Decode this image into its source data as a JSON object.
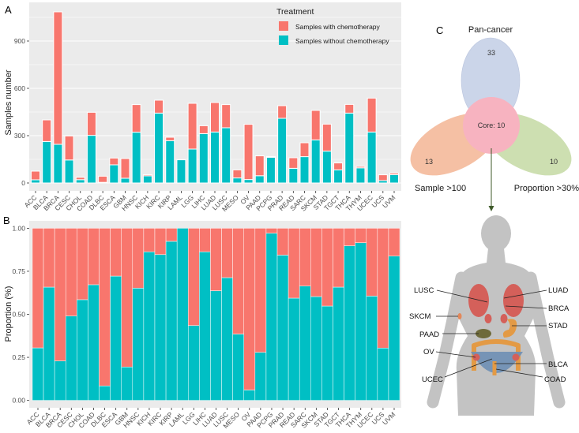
{
  "panels": {
    "a": "A",
    "b": "B",
    "c": "C"
  },
  "colors": {
    "with": "#F8766D",
    "without": "#00BFC4",
    "panel_bg": "#EBEBEB",
    "grid": "#FFFFFF"
  },
  "chart_data": [
    {
      "panel": "A",
      "type": "bar",
      "stacked": true,
      "categories": [
        "ACC",
        "BLCA",
        "BRCA",
        "CESC",
        "CHOL",
        "COAD",
        "DLBC",
        "ESCA",
        "GBM",
        "HNSC",
        "KICH",
        "KIRC",
        "KIRP",
        "LAML",
        "LGG",
        "LIHC",
        "LUAD",
        "LUSC",
        "MESO",
        "OV",
        "PAAD",
        "PCPG",
        "PRAD",
        "READ",
        "SARC",
        "SKCM",
        "STAD",
        "TGCT",
        "THCA",
        "THYM",
        "UCEC",
        "UCS",
        "UVM"
      ],
      "series": [
        {
          "name": "Samples with chemotherapy",
          "color": "#F8766D",
          "values": [
            55,
            137,
            840,
            152,
            15,
            146,
            39,
            43,
            125,
            175,
            7,
            82,
            22,
            0,
            290,
            50,
            187,
            147,
            51,
            350,
            126,
            5,
            80,
            67,
            88,
            187,
            171,
            44,
            55,
            9,
            215,
            37,
            10
          ]
        },
        {
          "name": "Samples without chemotherapy",
          "color": "#00BFC4",
          "values": [
            20,
            263,
            245,
            146,
            21,
            302,
            4,
            115,
            30,
            322,
            45,
            443,
            268,
            147,
            215,
            313,
            323,
            350,
            32,
            22,
            46,
            163,
            410,
            93,
            167,
            273,
            202,
            83,
            443,
            96,
            323,
            15,
            53
          ]
        }
      ],
      "xlabel": "",
      "ylabel": "Samples number",
      "yticks": [
        0,
        300,
        600,
        900
      ],
      "ylim": [
        -50,
        1145
      ],
      "grid": true,
      "legend": {
        "title": "Treatment",
        "position": "top-right"
      }
    },
    {
      "panel": "B",
      "type": "bar",
      "stacked": true,
      "categories": [
        "ACC",
        "BLCA",
        "BRCA",
        "CESC",
        "CHOL",
        "COAD",
        "DLBC",
        "ESCA",
        "GBM",
        "HNSC",
        "KICH",
        "KIRC",
        "KIRP",
        "LAML",
        "LGG",
        "LIHC",
        "LUAD",
        "LUSC",
        "MESO",
        "OV",
        "PAAD",
        "PCPG",
        "PRAD",
        "READ",
        "SARC",
        "SKCM",
        "STAD",
        "TGCT",
        "THCA",
        "THYM",
        "UCEC",
        "UCS",
        "UVM"
      ],
      "series": [
        {
          "name": "Samples without chemotherapy",
          "color": "#00BFC4",
          "values": [
            0.305,
            0.658,
            0.229,
            0.49,
            0.585,
            0.672,
            0.084,
            0.722,
            0.194,
            0.652,
            0.863,
            0.847,
            0.924,
            1.0,
            0.435,
            0.863,
            0.637,
            0.713,
            0.385,
            0.06,
            0.279,
            0.971,
            0.844,
            0.594,
            0.664,
            0.603,
            0.548,
            0.658,
            0.898,
            0.916,
            0.606,
            0.304,
            0.838
          ]
        },
        {
          "name": "Samples with chemotherapy",
          "color": "#F8766D",
          "values": [
            0.695,
            0.342,
            0.771,
            0.51,
            0.415,
            0.328,
            0.916,
            0.278,
            0.806,
            0.348,
            0.137,
            0.153,
            0.076,
            0.0,
            0.565,
            0.137,
            0.363,
            0.287,
            0.615,
            0.94,
            0.721,
            0.029,
            0.156,
            0.406,
            0.336,
            0.397,
            0.452,
            0.342,
            0.102,
            0.084,
            0.394,
            0.696,
            0.162
          ]
        }
      ],
      "xlabel": "",
      "ylabel": "Proportion (%)",
      "yticks": [
        0,
        0.25,
        0.5,
        0.75,
        1.0
      ],
      "ytick_labels": [
        "0.00",
        "0.25",
        "0.50",
        "0.75",
        "1.00"
      ],
      "ylim": [
        -0.043,
        1.043
      ],
      "grid": false
    }
  ],
  "venn": {
    "sets": [
      {
        "label": "Pan-cancer",
        "count": "33",
        "color": "#c9d3e8"
      },
      {
        "label": "Sample >100",
        "count": "13",
        "color": "#f4b99a"
      },
      {
        "label": "Proportion >30%",
        "count": "10",
        "color": "#c8dba8"
      }
    ],
    "core": "Core: 10",
    "core_color": "#f7b3c0"
  },
  "body": {
    "labels_left": [
      "LUSC",
      "SKCM",
      "PAAD",
      "OV",
      "UCEC"
    ],
    "labels_right": [
      "LUAD",
      "BRCA",
      "STAD",
      "BLCA",
      "COAD"
    ]
  }
}
